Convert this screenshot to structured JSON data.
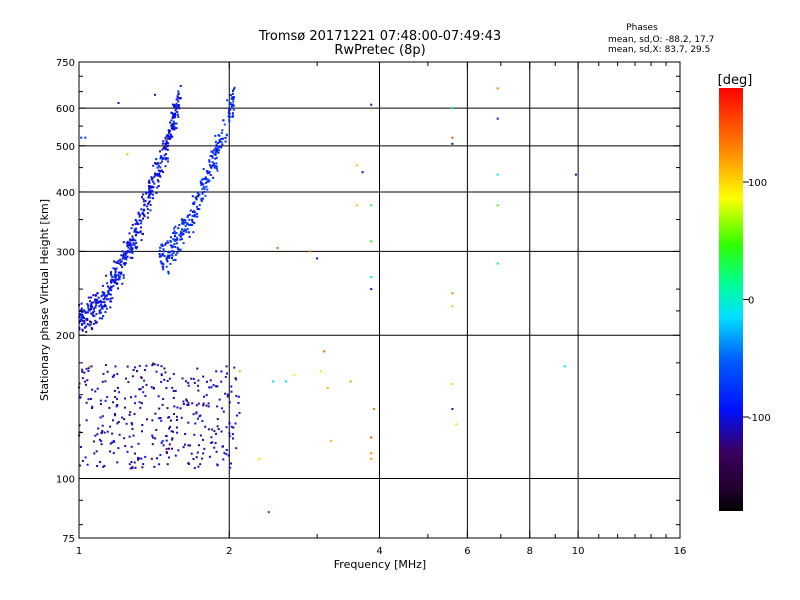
{
  "chart_data": {
    "type": "scatter",
    "title": "Tromsø 20171221 07:48:00-07:49:43",
    "subtitle": "RwPretec (8p)",
    "xlabel": "Frequency [MHz]",
    "ylabel": "Stationary phase Virtual Height [km]",
    "x_scale": "log",
    "y_scale": "log",
    "xlim": [
      1,
      16
    ],
    "ylim": [
      75,
      750
    ],
    "x_ticks": [
      1,
      2,
      4,
      6,
      8,
      10,
      16
    ],
    "x_tick_labels": [
      "1",
      "2",
      "4",
      "6",
      "8",
      "10",
      "16"
    ],
    "x_grid_lines": [
      2,
      4,
      6,
      8,
      10
    ],
    "y_ticks": [
      75,
      100,
      200,
      300,
      400,
      500,
      600,
      750
    ],
    "y_tick_labels": [
      "75",
      "100",
      "200",
      "300",
      "400",
      "500",
      "600",
      "750"
    ],
    "y_grid_lines": [
      100,
      200,
      300,
      400,
      500,
      600
    ],
    "phases_box": {
      "title": "Phases",
      "line_o": "mean, sd,O: -88.2, 17.7",
      "line_x": "mean, sd,X:  83.7, 29.5"
    },
    "colorbar": {
      "label": "[deg]",
      "min": -180,
      "max": 180,
      "ticks": [
        100,
        0,
        -100
      ],
      "tick_labels": [
        "100",
        "0",
        "-100"
      ]
    },
    "traces": [
      {
        "name": "F-layer O trace",
        "x_range": [
          1.0,
          1.6
        ],
        "h_start": 215,
        "h_end": 640,
        "phase": -95,
        "n": 520
      },
      {
        "name": "F-layer X trace",
        "x_range": [
          1.45,
          2.05
        ],
        "h_start": 290,
        "h_end": 640,
        "phase": -80,
        "n": 300
      },
      {
        "name": "Low-height echoes",
        "x_range": [
          1.0,
          2.1
        ],
        "h_start": 105,
        "h_end": 175,
        "phase": -110,
        "n": 360
      }
    ],
    "points": [
      {
        "x": 1.01,
        "h": 520,
        "phase": -70
      },
      {
        "x": 1.03,
        "h": 520,
        "phase": -70
      },
      {
        "x": 1.2,
        "h": 615,
        "phase": -100
      },
      {
        "x": 1.25,
        "h": 480,
        "phase": 110
      },
      {
        "x": 1.42,
        "h": 640,
        "phase": -110
      },
      {
        "x": 2.4,
        "h": 85,
        "phase": -60
      },
      {
        "x": 2.5,
        "h": 305,
        "phase": 140
      },
      {
        "x": 2.9,
        "h": 300,
        "phase": 130
      },
      {
        "x": 3.0,
        "h": 290,
        "phase": -110
      },
      {
        "x": 3.1,
        "h": 185,
        "phase": 140
      },
      {
        "x": 3.2,
        "h": 120,
        "phase": 110
      },
      {
        "x": 3.5,
        "h": 160,
        "phase": 120
      },
      {
        "x": 3.6,
        "h": 455,
        "phase": 110
      },
      {
        "x": 3.7,
        "h": 440,
        "phase": -100
      },
      {
        "x": 3.6,
        "h": 375,
        "phase": 110
      },
      {
        "x": 3.85,
        "h": 610,
        "phase": -110
      },
      {
        "x": 3.85,
        "h": 375,
        "phase": 30
      },
      {
        "x": 3.85,
        "h": 315,
        "phase": 40
      },
      {
        "x": 3.85,
        "h": 265,
        "phase": -10
      },
      {
        "x": 3.85,
        "h": 250,
        "phase": -110
      },
      {
        "x": 3.9,
        "h": 140,
        "phase": 130
      },
      {
        "x": 3.85,
        "h": 122,
        "phase": 150
      },
      {
        "x": 3.85,
        "h": 113,
        "phase": 130
      },
      {
        "x": 3.85,
        "h": 110,
        "phase": 120
      },
      {
        "x": 5.6,
        "h": 600,
        "phase": -10
      },
      {
        "x": 5.6,
        "h": 520,
        "phase": 150
      },
      {
        "x": 5.6,
        "h": 505,
        "phase": -110
      },
      {
        "x": 5.6,
        "h": 245,
        "phase": 130
      },
      {
        "x": 5.6,
        "h": 230,
        "phase": 110
      },
      {
        "x": 5.6,
        "h": 158,
        "phase": 100
      },
      {
        "x": 5.6,
        "h": 140,
        "phase": -110
      },
      {
        "x": 5.7,
        "h": 130,
        "phase": 100
      },
      {
        "x": 6.9,
        "h": 660,
        "phase": 130
      },
      {
        "x": 6.9,
        "h": 570,
        "phase": -110
      },
      {
        "x": 6.9,
        "h": 435,
        "phase": -10
      },
      {
        "x": 6.9,
        "h": 375,
        "phase": 50
      },
      {
        "x": 6.9,
        "h": 283,
        "phase": -10
      },
      {
        "x": 9.4,
        "h": 172,
        "phase": -10
      },
      {
        "x": 9.9,
        "h": 435,
        "phase": -110
      },
      {
        "x": 1.05,
        "h": 172,
        "phase": 110
      },
      {
        "x": 2.1,
        "h": 168,
        "phase": 60
      },
      {
        "x": 2.3,
        "h": 110,
        "phase": 100
      },
      {
        "x": 2.45,
        "h": 160,
        "phase": -20
      },
      {
        "x": 2.6,
        "h": 160,
        "phase": -10
      },
      {
        "x": 2.7,
        "h": 165,
        "phase": 90
      },
      {
        "x": 3.05,
        "h": 168,
        "phase": 100
      },
      {
        "x": 3.15,
        "h": 155,
        "phase": 110
      }
    ]
  }
}
